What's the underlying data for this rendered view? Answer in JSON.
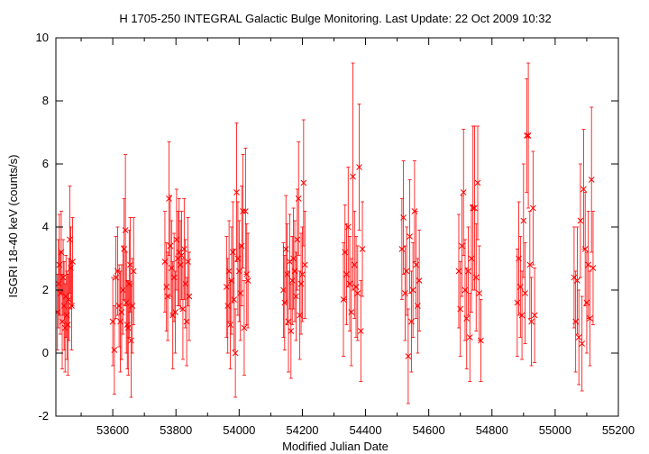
{
  "chart_data": {
    "type": "scatter",
    "title": "H 1705-250   INTEGRAL Galactic Bulge Monitoring.  Last Update: 22 Oct 2009 10:32",
    "xlabel": "Modified Julian Date",
    "ylabel": "ISGRI 18-40 keV (counts/s)",
    "xlim": [
      53420,
      55200
    ],
    "ylim": [
      -2,
      10
    ],
    "xticks": [
      53600,
      53800,
      54000,
      54200,
      54400,
      54600,
      54800,
      55000,
      55200
    ],
    "yticks": [
      -2,
      0,
      2,
      4,
      6,
      8,
      10
    ],
    "grid": false,
    "legend": "none",
    "marker": "x",
    "error_bars": true,
    "color": "#ff0000",
    "series": [
      {
        "x": [
          53425,
          53428,
          53431,
          53434,
          53437,
          53440,
          53443,
          53446,
          53449,
          53452,
          53455,
          53458,
          53461,
          53464,
          53467,
          53470,
          53473,
          53600,
          53605,
          53610,
          53615,
          53620,
          53624,
          53628,
          53632,
          53636,
          53640,
          53643,
          53646,
          53649,
          53652,
          53655,
          53658,
          53662,
          53666,
          53765,
          53770,
          53774,
          53778,
          53782,
          53786,
          53790,
          53794,
          53798,
          53802,
          53806,
          53810,
          53814,
          53818,
          53822,
          53826,
          53830,
          53834,
          53838,
          53842,
          53960,
          53964,
          53968,
          53972,
          53976,
          53980,
          53984,
          53988,
          53992,
          53996,
          54000,
          54004,
          54008,
          54012,
          54016,
          54020,
          54024,
          54028,
          54140,
          54144,
          54148,
          54152,
          54156,
          54160,
          54164,
          54168,
          54172,
          54176,
          54180,
          54184,
          54188,
          54192,
          54196,
          54200,
          54204,
          54208,
          54330,
          54335,
          54340,
          54345,
          54350,
          54355,
          54360,
          54365,
          54370,
          54375,
          54380,
          54385,
          54390,
          54515,
          54520,
          54525,
          54530,
          54535,
          54540,
          54545,
          54550,
          54555,
          54560,
          54565,
          54570,
          54695,
          54700,
          54705,
          54710,
          54715,
          54720,
          54725,
          54730,
          54735,
          54740,
          54745,
          54750,
          54755,
          54760,
          54765,
          54880,
          54885,
          54890,
          54895,
          54900,
          54905,
          54910,
          54915,
          54920,
          54925,
          54930,
          54935,
          55060,
          55065,
          55070,
          55075,
          55080,
          55085,
          55090,
          55095,
          55100,
          55105,
          55110,
          55115,
          55120
        ],
        "y": [
          1.3,
          2.2,
          2.8,
          1.9,
          3.2,
          1.0,
          2.4,
          1.5,
          0.8,
          1.8,
          1.2,
          0.9,
          1.7,
          3.6,
          2.7,
          1.5,
          2.9,
          1.0,
          0.1,
          2.4,
          2.6,
          1.5,
          1.0,
          1.3,
          2.0,
          3.3,
          3.9,
          1.6,
          0.9,
          0.8,
          2.2,
          2.8,
          0.4,
          1.5,
          2.6,
          2.9,
          2.1,
          1.8,
          4.9,
          3.4,
          2.7,
          1.2,
          2.4,
          1.3,
          3.6,
          3.0,
          3.2,
          2.8,
          3.1,
          1.4,
          3.3,
          2.2,
          1.0,
          2.9,
          1.8,
          2.1,
          1.5,
          2.6,
          0.9,
          2.3,
          3.2,
          1.7,
          0.0,
          5.1,
          3.0,
          2.6,
          1.9,
          3.4,
          4.5,
          0.8,
          4.5,
          2.5,
          2.3,
          2.0,
          1.6,
          3.3,
          2.5,
          1.0,
          2.9,
          0.7,
          2.3,
          3.0,
          2.6,
          1.8,
          3.6,
          4.9,
          1.2,
          2.2,
          2.5,
          5.4,
          2.8,
          1.7,
          3.2,
          2.5,
          4.0,
          2.2,
          1.3,
          5.6,
          2.8,
          2.1,
          1.9,
          5.9,
          0.7,
          3.3,
          3.3,
          4.3,
          1.9,
          2.6,
          -0.1,
          3.7,
          1.0,
          2.0,
          4.5,
          2.8,
          1.5,
          2.3,
          2.6,
          1.4,
          3.4,
          5.1,
          2.0,
          1.1,
          2.6,
          0.5,
          3.0,
          4.6,
          4.6,
          2.4,
          5.4,
          1.9,
          0.4,
          1.6,
          3.0,
          2.1,
          1.2,
          4.2,
          1.9,
          6.9,
          6.9,
          2.8,
          1.0,
          4.6,
          1.2,
          2.4,
          1.0,
          2.3,
          0.5,
          4.2,
          0.3,
          5.2,
          3.3,
          1.6,
          2.8,
          1.1,
          5.5,
          2.7
        ],
        "yerr": [
          1.2,
          1.4,
          1.6,
          1.3,
          1.3,
          1.5,
          1.2,
          1.4,
          1.4,
          1.3,
          1.4,
          1.6,
          1.3,
          1.7,
          1.3,
          1.4,
          1.4,
          1.4,
          1.4,
          1.3,
          1.4,
          1.3,
          1.6,
          1.5,
          1.4,
          1.6,
          2.4,
          1.6,
          1.4,
          1.5,
          1.7,
          1.5,
          1.8,
          1.5,
          1.7,
          1.6,
          1.4,
          1.4,
          1.8,
          1.6,
          1.5,
          1.7,
          1.4,
          1.3,
          1.6,
          1.5,
          1.7,
          1.4,
          1.4,
          1.6,
          1.6,
          1.4,
          1.4,
          1.4,
          1.4,
          1.6,
          1.5,
          1.6,
          1.4,
          1.7,
          1.6,
          1.6,
          1.4,
          2.2,
          1.8,
          1.6,
          1.5,
          1.9,
          1.8,
          1.5,
          2.0,
          1.6,
          1.5,
          1.5,
          1.5,
          1.7,
          1.6,
          1.6,
          1.5,
          1.5,
          1.4,
          1.6,
          1.6,
          1.4,
          1.6,
          1.8,
          1.4,
          1.6,
          1.5,
          2.0,
          1.7,
          1.8,
          1.5,
          1.6,
          1.9,
          1.5,
          1.7,
          3.6,
          1.7,
          1.6,
          1.5,
          2.0,
          1.6,
          1.5,
          1.6,
          1.8,
          1.5,
          1.4,
          1.5,
          1.8,
          1.6,
          1.5,
          1.6,
          1.7,
          1.5,
          1.6,
          1.8,
          1.5,
          1.6,
          2.0,
          1.6,
          1.6,
          1.4,
          1.4,
          1.7,
          2.6,
          2.6,
          1.7,
          1.8,
          1.5,
          1.3,
          1.7,
          1.8,
          1.6,
          1.4,
          1.8,
          1.6,
          1.8,
          2.3,
          1.7,
          1.4,
          1.8,
          1.5,
          1.6,
          1.6,
          1.7,
          1.5,
          1.8,
          1.5,
          1.9,
          1.8,
          1.6,
          1.7,
          1.5,
          2.3,
          1.8
        ]
      }
    ]
  }
}
